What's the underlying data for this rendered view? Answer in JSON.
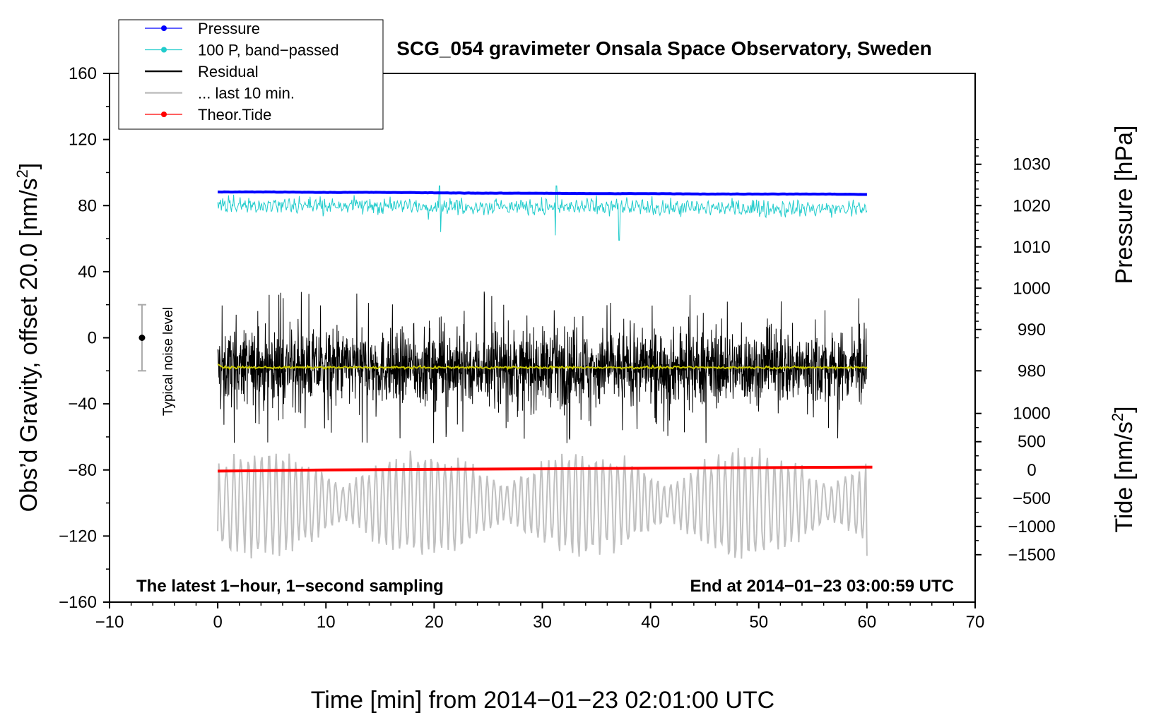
{
  "chart_data": {
    "type": "line",
    "title": "SCG_054 gravimeter Onsala Space Observatory, Sweden",
    "xlabel": "Time [min] from 2014−01−23 02:01:00 UTC",
    "ylabel_left": "Obs’d Gravity, offset 20.0 [nm/s²]",
    "ylabel_left_main": "Obs’d Gravity, offset 20.0 [nm/s",
    "ylabel_right_top": "Pressure [hPa]",
    "ylabel_right_bottom_main": "Tide [nm/s",
    "unit_close": "]",
    "superscript_two": "2",
    "xlim": [
      -10,
      70
    ],
    "ylim_left": [
      -160,
      160
    ],
    "x_ticks": [
      -10,
      0,
      10,
      20,
      30,
      40,
      50,
      60,
      70
    ],
    "x_tick_labels": [
      "−10",
      "0",
      "10",
      "20",
      "30",
      "40",
      "50",
      "60",
      "70"
    ],
    "y_ticks_left": [
      -160,
      -120,
      -80,
      -40,
      0,
      40,
      80,
      120,
      160
    ],
    "y_tick_labels_left": [
      "−160",
      "−120",
      "−80",
      "−40",
      "0",
      "40",
      "80",
      "120",
      "160"
    ],
    "pressure_axis": {
      "ticks": [
        980,
        990,
        1000,
        1010,
        1020,
        1030
      ],
      "tick_labels": [
        "980",
        "990",
        "1000",
        "1010",
        "1020",
        "1030"
      ],
      "map_left_units": [
        -20.0,
        5.0
      ]
    },
    "tide_axis": {
      "ticks": [
        -1500,
        -1000,
        -500,
        0,
        500,
        1000
      ],
      "tick_labels": [
        "−1500",
        "−1000",
        "−500",
        "0",
        "500",
        "1000"
      ],
      "map_left_units": [
        -80.0,
        0.0342
      ]
    },
    "legend": {
      "position": "top-left",
      "entries": [
        {
          "label": "Pressure",
          "color": "#0000ff",
          "marker": true
        },
        {
          "label": "100 P, band−passed",
          "color": "#22cccc",
          "marker": true
        },
        {
          "label": "Residual",
          "color": "#000000",
          "marker": false
        },
        {
          "label": "... last 10 min.",
          "color": "#c0c0c0",
          "marker": false
        },
        {
          "label": "Theor.Tide",
          "color": "#ff0000",
          "marker": true
        }
      ]
    },
    "series": [
      {
        "name": "Pressure",
        "color": "#0000ff",
        "axis": "pressure",
        "x_range": [
          0,
          60
        ],
        "values_hPa": [
          1023.3,
          1023.3,
          1023.2,
          1023.2,
          1023.1,
          1023.0,
          1023.0,
          1022.9,
          1022.9,
          1022.8,
          1022.8,
          1022.8,
          1022.7
        ]
      },
      {
        "name": "100 P, band−passed",
        "color": "#22cccc",
        "axis": "left",
        "x_range": [
          0,
          60
        ],
        "center": 80.5,
        "typical_amplitude": 6,
        "extremes": [
          {
            "x": 20.6,
            "value": 64
          },
          {
            "x": 31.2,
            "value": 62
          },
          {
            "x": 37.1,
            "value": 59
          },
          {
            "x": 31.3,
            "value": 92
          },
          {
            "x": 20.5,
            "value": 92
          }
        ]
      },
      {
        "name": "Residual",
        "color": "#000000",
        "axis": "left",
        "x_range": [
          0,
          60
        ],
        "center": -18,
        "envelope": [
          -67,
          32
        ]
      },
      {
        "name": "Residual smoothed",
        "color": "#c8c800",
        "axis": "left",
        "x_range": [
          0,
          60
        ],
        "center": -18
      },
      {
        "name": "... last 10 min.",
        "color": "#c0c0c0",
        "axis": "left",
        "x_range": [
          0,
          60
        ],
        "center": -100,
        "envelope": [
          -143,
          -64
        ]
      },
      {
        "name": "Theor.Tide",
        "color": "#ff0000",
        "axis": "tide",
        "x": [
          0,
          10,
          20,
          30,
          40,
          50,
          60.5
        ],
        "values_nm_s2": [
          -20,
          0,
          10,
          20,
          30,
          40,
          50
        ]
      }
    ],
    "noise_bar": {
      "label": "Typical noise level",
      "x": -7,
      "center": 0,
      "half_range": 20
    },
    "annotations": {
      "bottom_left": "The latest 1−hour, 1−second sampling",
      "bottom_right": "End at 2014−01−23 03:00:59 UTC"
    }
  }
}
